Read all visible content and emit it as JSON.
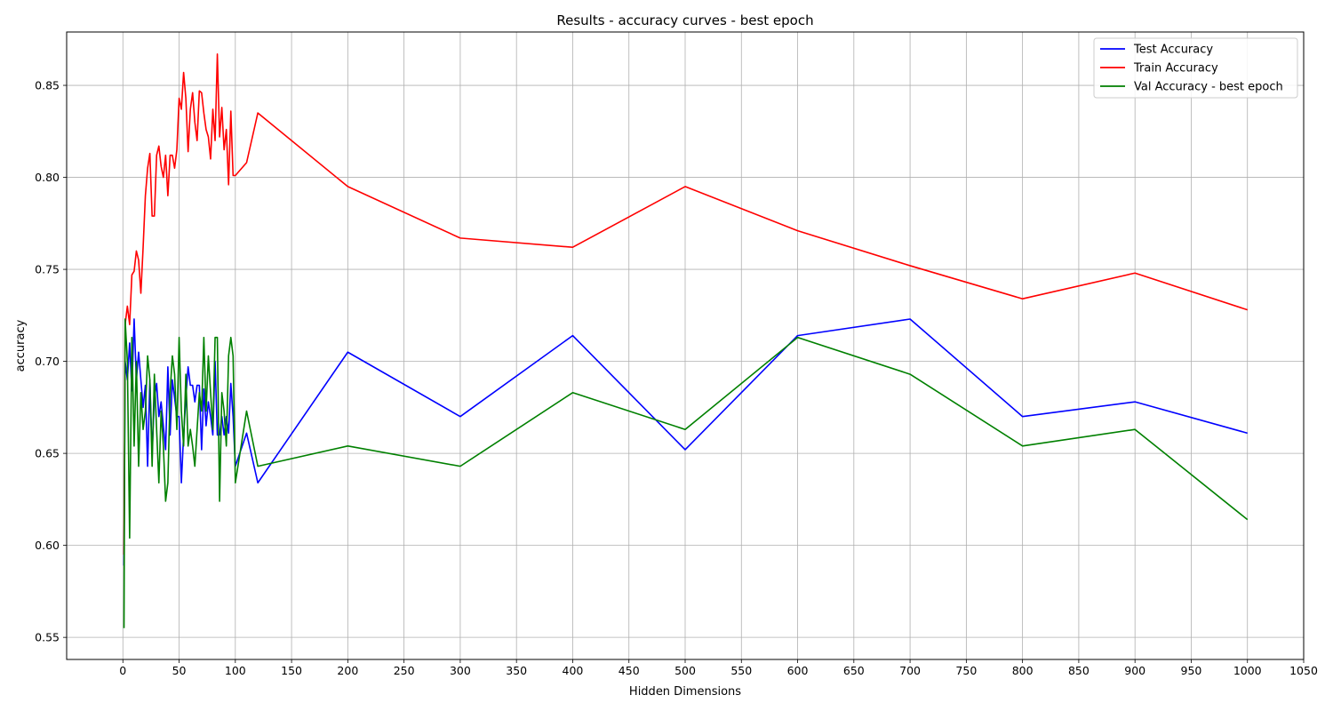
{
  "chart_data": {
    "type": "line",
    "title": "Results - accuracy curves - best epoch",
    "xlabel": "Hidden Dimensions",
    "ylabel": "accuracy",
    "xlim": [
      -50,
      1050
    ],
    "ylim": [
      0.538,
      0.879
    ],
    "xticks": [
      0,
      50,
      100,
      150,
      200,
      250,
      300,
      350,
      400,
      450,
      500,
      550,
      600,
      650,
      700,
      750,
      800,
      850,
      900,
      950,
      1000,
      1050
    ],
    "yticks": [
      0.55,
      0.6,
      0.65,
      0.7,
      0.75,
      0.8,
      0.85
    ],
    "grid": true,
    "legend_position": "top-right",
    "x": [
      1,
      2,
      4,
      6,
      8,
      10,
      12,
      14,
      16,
      18,
      20,
      22,
      24,
      26,
      28,
      30,
      32,
      34,
      36,
      38,
      40,
      42,
      44,
      46,
      48,
      50,
      52,
      54,
      56,
      58,
      60,
      62,
      64,
      66,
      68,
      70,
      72,
      74,
      76,
      78,
      80,
      82,
      84,
      86,
      88,
      90,
      92,
      94,
      96,
      98,
      100,
      110,
      120,
      200,
      300,
      400,
      500,
      600,
      700,
      800,
      900,
      1000
    ],
    "series": [
      {
        "name": "Test Accuracy",
        "color": "#0000ff",
        "values": [
          0.589,
          0.7,
          0.69,
          0.71,
          0.684,
          0.723,
          0.69,
          0.705,
          0.69,
          0.675,
          0.687,
          0.643,
          0.69,
          0.65,
          0.68,
          0.688,
          0.67,
          0.678,
          0.665,
          0.652,
          0.697,
          0.66,
          0.69,
          0.68,
          0.67,
          0.67,
          0.634,
          0.66,
          0.68,
          0.697,
          0.687,
          0.687,
          0.678,
          0.687,
          0.687,
          0.652,
          0.685,
          0.665,
          0.678,
          0.67,
          0.66,
          0.7,
          0.66,
          0.66,
          0.67,
          0.66,
          0.67,
          0.661,
          0.688,
          0.67,
          0.643,
          0.661,
          0.634,
          0.705,
          0.67,
          0.714,
          0.652,
          0.714,
          0.723,
          0.67,
          0.678,
          0.661
        ]
      },
      {
        "name": "Train Accuracy",
        "color": "#ff0000",
        "values": [
          0.595,
          0.72,
          0.73,
          0.72,
          0.747,
          0.749,
          0.76,
          0.755,
          0.737,
          0.762,
          0.79,
          0.805,
          0.813,
          0.779,
          0.779,
          0.812,
          0.817,
          0.806,
          0.8,
          0.812,
          0.79,
          0.812,
          0.812,
          0.805,
          0.815,
          0.843,
          0.837,
          0.857,
          0.843,
          0.814,
          0.837,
          0.846,
          0.83,
          0.82,
          0.847,
          0.846,
          0.835,
          0.826,
          0.822,
          0.81,
          0.837,
          0.82,
          0.867,
          0.822,
          0.838,
          0.815,
          0.826,
          0.796,
          0.836,
          0.801,
          0.801,
          0.808,
          0.835,
          0.795,
          0.767,
          0.762,
          0.795,
          0.771,
          0.752,
          0.734,
          0.748,
          0.728
        ]
      },
      {
        "name": "Val Accuracy - best epoch",
        "color": "#008000",
        "values": [
          0.555,
          0.723,
          0.7,
          0.604,
          0.713,
          0.654,
          0.7,
          0.643,
          0.683,
          0.663,
          0.673,
          0.703,
          0.69,
          0.643,
          0.693,
          0.663,
          0.634,
          0.673,
          0.654,
          0.624,
          0.634,
          0.683,
          0.703,
          0.693,
          0.663,
          0.713,
          0.673,
          0.654,
          0.693,
          0.654,
          0.663,
          0.654,
          0.643,
          0.663,
          0.683,
          0.673,
          0.713,
          0.673,
          0.703,
          0.683,
          0.663,
          0.713,
          0.713,
          0.624,
          0.683,
          0.673,
          0.654,
          0.703,
          0.713,
          0.703,
          0.634,
          0.673,
          0.643,
          0.654,
          0.643,
          0.683,
          0.663,
          0.713,
          0.693,
          0.654,
          0.663,
          0.614
        ]
      }
    ]
  }
}
